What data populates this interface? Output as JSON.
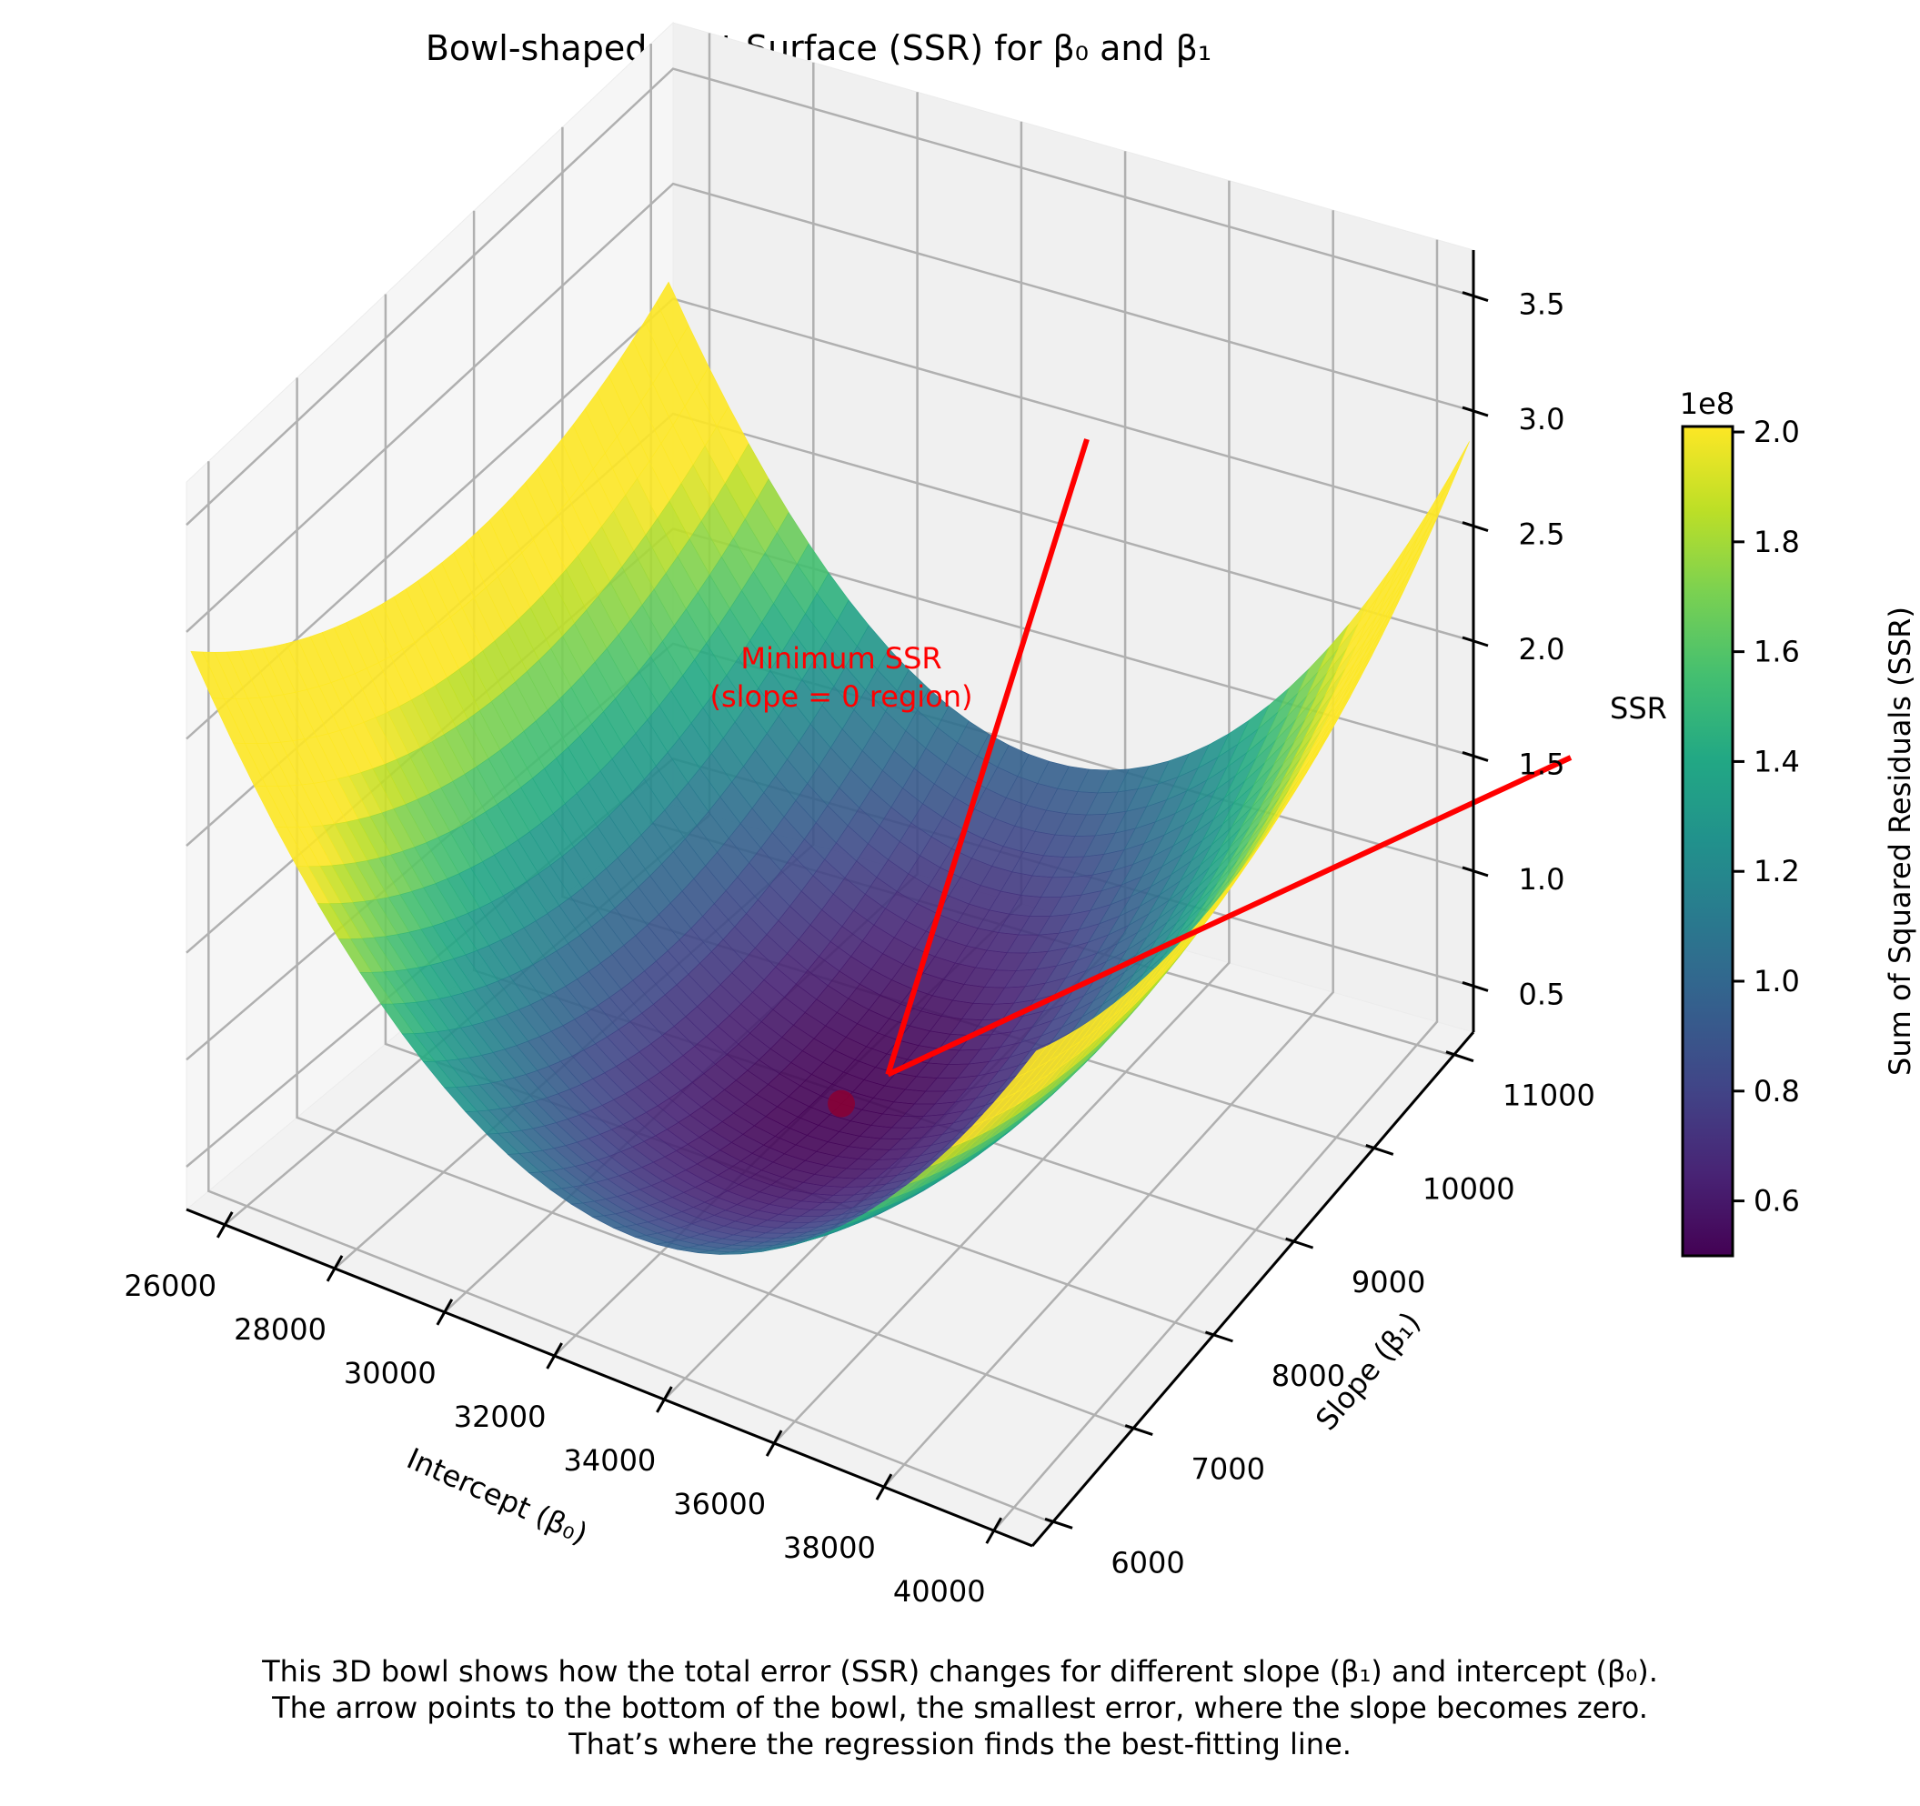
{
  "chart_data": {
    "type": "surface3d",
    "title": "Bowl-shaped Cost Surface (SSR) for β₀ and β₁",
    "xlabel": "Intercept (β₀)",
    "ylabel": "Slope (β₁)",
    "zlabel": "SSR",
    "x_ticks": [
      "26000",
      "28000",
      "30000",
      "32000",
      "34000",
      "36000",
      "38000",
      "40000"
    ],
    "x_tick_values": [
      26000,
      28000,
      30000,
      32000,
      34000,
      36000,
      38000,
      40000
    ],
    "y_ticks": [
      "6000",
      "7000",
      "8000",
      "9000",
      "10000",
      "11000"
    ],
    "y_tick_values": [
      6000,
      7000,
      8000,
      9000,
      10000,
      11000
    ],
    "z_ticks": [
      "0.5",
      "1.0",
      "1.5",
      "2.0",
      "2.5",
      "3.0",
      "3.5"
    ],
    "z_tick_values": [
      0.5,
      1.0,
      1.5,
      2.0,
      2.5,
      3.0,
      3.5
    ],
    "z_multiplier": "1e8",
    "xlim": [
      25300,
      40700
    ],
    "ylim": [
      5750,
      11250
    ],
    "zlim": [
      0.3,
      3.7
    ],
    "surface": {
      "x_range": [
        25300,
        40700
      ],
      "y_range": [
        5800,
        11200
      ],
      "min_point": {
        "x": 33000,
        "y": 8500,
        "z": 0.5
      },
      "ssr_min": 0.5,
      "curvature_x": 1.0,
      "curvature_y": 0.15,
      "colormap": "viridis",
      "alpha": 0.9
    },
    "minimum_marker": {
      "x": 33000,
      "y": 8500,
      "z": 0.5,
      "color": "#8b0033"
    },
    "annotation": {
      "lines": [
        "Minimum SSR",
        "(slope = 0 region)"
      ],
      "color": "#ff0000",
      "arrow_color": "#ff0000"
    },
    "colorbar": {
      "label": "Sum of Squared Residuals (SSR)",
      "multiplier": "1e8",
      "ticks": [
        "0.6",
        "0.8",
        "1.0",
        "1.2",
        "1.4",
        "1.6",
        "1.8",
        "2.0"
      ],
      "tick_values": [
        0.6,
        0.8,
        1.0,
        1.2,
        1.4,
        1.6,
        1.8,
        2.0
      ],
      "range": [
        0.5,
        2.01
      ],
      "colormap": "viridis"
    },
    "grid": true
  },
  "caption": {
    "lines": [
      "This 3D bowl shows how the total error (SSR) changes for different slope (β₁) and intercept (β₀).",
      "The arrow points to the bottom of the bowl, the smallest error, where the slope becomes zero.",
      "That’s where the regression finds the best-fitting line."
    ]
  }
}
